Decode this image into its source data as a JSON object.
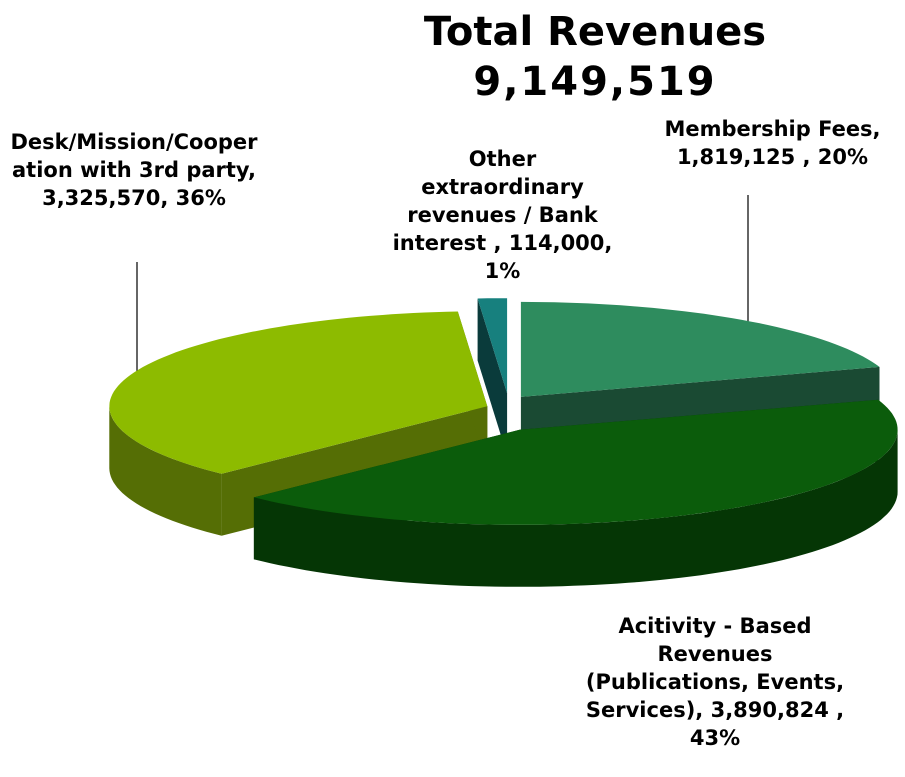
{
  "chart_data": {
    "type": "pie3d",
    "title": "Total Revenues",
    "subtitle": "9,149,519",
    "labels": [
      "Membership Fees, 1,819,125 , 20%",
      "Acitivity - Based Revenues (Publications, Events, Services), 3,890,824 , 43%",
      "Desk/Mission/Cooperation with 3rd party, 3,325,570, 36%",
      "Other extraordinary revenues / Bank interest , 114,000, 1%"
    ],
    "values": [
      1819125,
      3890824,
      3325570,
      114000
    ],
    "colors": [
      "#2e8c5e",
      "#0b5c0b",
      "#8dbb00",
      "#17807e"
    ],
    "side_colors": [
      "#1a4a33",
      "#053605",
      "#556e05",
      "#0a3b3b"
    ]
  }
}
